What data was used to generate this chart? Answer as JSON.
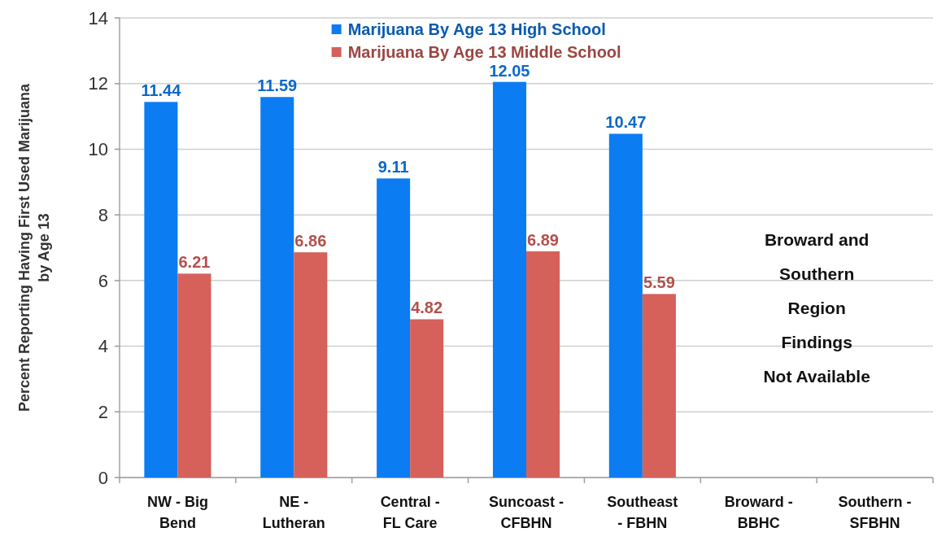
{
  "chart_data": {
    "type": "bar",
    "categories": [
      "NW - Big Bend",
      "NE - Lutheran",
      "Central - FL Care",
      "Suncoast - CFBHN",
      "Southeast - FBHN",
      "Broward - BBHC",
      "Southern - SFBHN"
    ],
    "series": [
      {
        "name": "Marijuana By Age 13 High School",
        "color": "#0b7cf2",
        "values": [
          11.44,
          11.59,
          9.11,
          12.05,
          10.47,
          null,
          null
        ]
      },
      {
        "name": "Marijuana By Age 13 Middle School",
        "color": "#d6605a",
        "values": [
          6.21,
          6.86,
          4.82,
          6.89,
          5.59,
          null,
          null
        ]
      }
    ],
    "ylabel": "Percent Reporting Having First Used Marijuana by Age 13",
    "ylim": [
      0,
      14
    ],
    "yticks": [
      0,
      2,
      4,
      6,
      8,
      10,
      12,
      14
    ],
    "grid": "y",
    "legend": "top",
    "data_labels": true,
    "annotations": [
      "Broward and\nSouthern\nRegion\nFindings\nNot Available"
    ]
  }
}
